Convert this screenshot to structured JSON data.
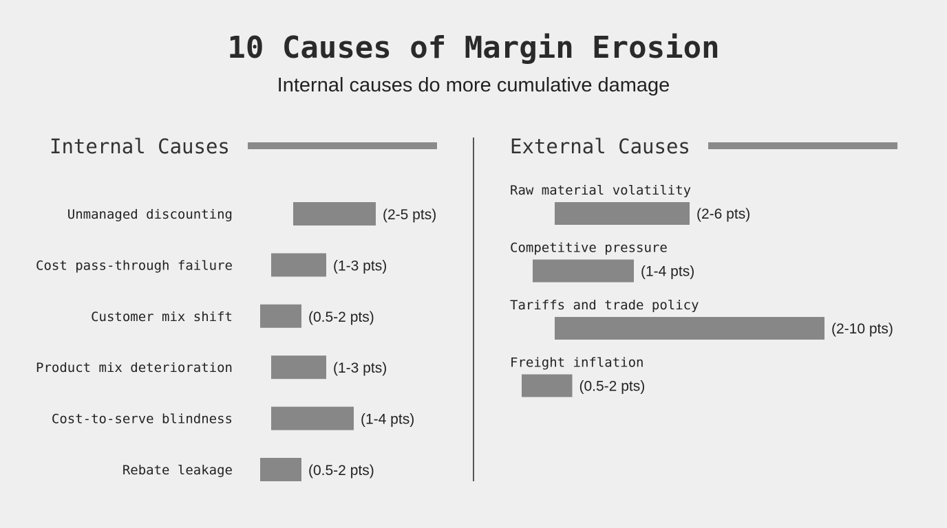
{
  "chart_data": {
    "type": "bar",
    "title": "10 Causes of Margin Erosion",
    "subtitle": "Internal causes do more cumulative damage",
    "unit": "pts",
    "panels": [
      {
        "name": "Internal Causes",
        "categories": [
          "Unmanaged discounting",
          "Cost pass-through failure",
          "Customer mix shift",
          "Product mix deterioration",
          "Cost-to-serve blindness",
          "Rebate leakage"
        ],
        "ranges": [
          [
            2,
            5
          ],
          [
            1,
            3
          ],
          [
            0.5,
            2
          ],
          [
            1,
            3
          ],
          [
            1,
            4
          ],
          [
            0.5,
            2
          ]
        ],
        "labels": [
          "(2-5 pts)",
          "(1-3 pts)",
          "(0.5-2 pts)",
          "(1-3 pts)",
          "(1-4 pts)",
          "(0.5-2 pts)"
        ]
      },
      {
        "name": "External Causes",
        "categories": [
          "Raw material volatility",
          "Competitive pressure",
          "Tariffs and trade policy",
          "Freight inflation"
        ],
        "ranges": [
          [
            2,
            6
          ],
          [
            1,
            4
          ],
          [
            2,
            10
          ],
          [
            0.5,
            2
          ]
        ],
        "labels": [
          "(2-6 pts)",
          "(1-4 pts)",
          "(2-10 pts)",
          "(0.5-2 pts)"
        ]
      }
    ],
    "colors": {
      "bar": "#878787",
      "text": "#222222"
    }
  }
}
